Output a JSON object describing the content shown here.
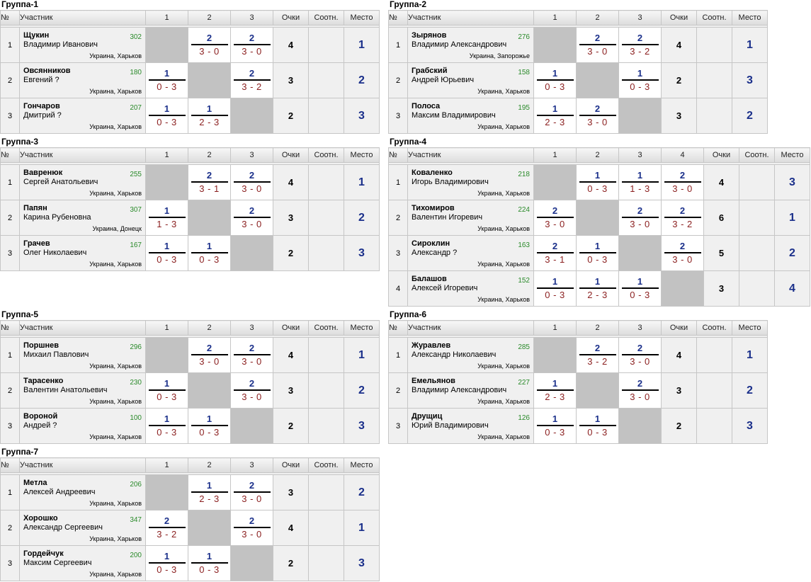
{
  "headers": {
    "num": "№",
    "participant": "Участник",
    "points": "Очки",
    "ratio": "Соотн.",
    "place": "Место"
  },
  "groups": [
    {
      "title": "Группа-1",
      "cols": [
        "1",
        "2",
        "3"
      ],
      "players": [
        {
          "n": "1",
          "last": "Щукин",
          "first": "Владимир Иванович",
          "rating": "302",
          "city": "Украина, Харьков",
          "res": [
            null,
            {
              "p": "2",
              "s": "3 - 0"
            },
            {
              "p": "2",
              "s": "3 - 0"
            }
          ],
          "points": "4",
          "place": "1"
        },
        {
          "n": "2",
          "last": "Овсянников",
          "first": "Евгений ?",
          "rating": "180",
          "city": "Украина, Харьков",
          "res": [
            {
              "p": "1",
              "s": "0 - 3"
            },
            null,
            {
              "p": "2",
              "s": "3 - 2"
            }
          ],
          "points": "3",
          "place": "2"
        },
        {
          "n": "3",
          "last": "Гончаров",
          "first": "Дмитрий ?",
          "rating": "207",
          "city": "Украина, Харьков",
          "res": [
            {
              "p": "1",
              "s": "0 - 3"
            },
            {
              "p": "1",
              "s": "2 - 3"
            },
            null
          ],
          "points": "2",
          "place": "3"
        }
      ]
    },
    {
      "title": "Группа-2",
      "cols": [
        "1",
        "2",
        "3"
      ],
      "players": [
        {
          "n": "1",
          "last": "Зырянов",
          "first": "Владимир Александрович",
          "rating": "276",
          "city": "Украина, Запорожье",
          "res": [
            null,
            {
              "p": "2",
              "s": "3 - 0"
            },
            {
              "p": "2",
              "s": "3 - 2"
            }
          ],
          "points": "4",
          "place": "1"
        },
        {
          "n": "2",
          "last": "Грабский",
          "first": "Андрей Юрьевич",
          "rating": "158",
          "city": "Украина, Харьков",
          "res": [
            {
              "p": "1",
              "s": "0 - 3"
            },
            null,
            {
              "p": "1",
              "s": "0 - 3"
            }
          ],
          "points": "2",
          "place": "3"
        },
        {
          "n": "3",
          "last": "Полоса",
          "first": "Максим Владимирович",
          "rating": "195",
          "city": "Украина, Харьков",
          "res": [
            {
              "p": "1",
              "s": "2 - 3"
            },
            {
              "p": "2",
              "s": "3 - 0"
            },
            null
          ],
          "points": "3",
          "place": "2"
        }
      ]
    },
    {
      "title": "Группа-3",
      "cols": [
        "1",
        "2",
        "3"
      ],
      "players": [
        {
          "n": "1",
          "last": "Вавренюк",
          "first": "Сергей Анатольевич",
          "rating": "255",
          "city": "Украина, Харьков",
          "res": [
            null,
            {
              "p": "2",
              "s": "3 - 1"
            },
            {
              "p": "2",
              "s": "3 - 0"
            }
          ],
          "points": "4",
          "place": "1"
        },
        {
          "n": "2",
          "last": "Папян",
          "first": "Карина Рубеновна",
          "rating": "307",
          "city": "Украина, Донецк",
          "res": [
            {
              "p": "1",
              "s": "1 - 3"
            },
            null,
            {
              "p": "2",
              "s": "3 - 0"
            }
          ],
          "points": "3",
          "place": "2"
        },
        {
          "n": "3",
          "last": "Грачев",
          "first": "Олег Николаевич",
          "rating": "167",
          "city": "Украина, Харьков",
          "res": [
            {
              "p": "1",
              "s": "0 - 3"
            },
            {
              "p": "1",
              "s": "0 - 3"
            },
            null
          ],
          "points": "2",
          "place": "3"
        }
      ]
    },
    {
      "title": "Группа-4",
      "cols": [
        "1",
        "2",
        "3",
        "4"
      ],
      "players": [
        {
          "n": "1",
          "last": "Коваленко",
          "first": "Игорь Владимирович",
          "rating": "218",
          "city": "Украина, Харьков",
          "res": [
            null,
            {
              "p": "1",
              "s": "0 - 3"
            },
            {
              "p": "1",
              "s": "1 - 3"
            },
            {
              "p": "2",
              "s": "3 - 0"
            }
          ],
          "points": "4",
          "place": "3"
        },
        {
          "n": "2",
          "last": "Тихомиров",
          "first": "Валентин Игоревич",
          "rating": "224",
          "city": "Украина, Харьков",
          "res": [
            {
              "p": "2",
              "s": "3 - 0"
            },
            null,
            {
              "p": "2",
              "s": "3 - 0"
            },
            {
              "p": "2",
              "s": "3 - 2"
            }
          ],
          "points": "6",
          "place": "1"
        },
        {
          "n": "3",
          "last": "Сироклин",
          "first": "Александр ?",
          "rating": "163",
          "city": "Украина, Харьков",
          "res": [
            {
              "p": "2",
              "s": "3 - 1"
            },
            {
              "p": "1",
              "s": "0 - 3"
            },
            null,
            {
              "p": "2",
              "s": "3 - 0"
            }
          ],
          "points": "5",
          "place": "2"
        },
        {
          "n": "4",
          "last": "Балашов",
          "first": "Алексей Игоревич",
          "rating": "152",
          "city": "Украина, Харьков",
          "res": [
            {
              "p": "1",
              "s": "0 - 3"
            },
            {
              "p": "1",
              "s": "2 - 3"
            },
            {
              "p": "1",
              "s": "0 - 3"
            },
            null
          ],
          "points": "3",
          "place": "4"
        }
      ]
    },
    {
      "title": "Группа-5",
      "cols": [
        "1",
        "2",
        "3"
      ],
      "players": [
        {
          "n": "1",
          "last": "Поршнев",
          "first": "Михаил Павлович",
          "rating": "296",
          "city": "Украина, Харьков",
          "res": [
            null,
            {
              "p": "2",
              "s": "3 - 0"
            },
            {
              "p": "2",
              "s": "3 - 0"
            }
          ],
          "points": "4",
          "place": "1"
        },
        {
          "n": "2",
          "last": "Тарасенко",
          "first": "Валентин Анатольевич",
          "rating": "230",
          "city": "Украина, Харьков",
          "res": [
            {
              "p": "1",
              "s": "0 - 3"
            },
            null,
            {
              "p": "2",
              "s": "3 - 0"
            }
          ],
          "points": "3",
          "place": "2"
        },
        {
          "n": "3",
          "last": "Вороной",
          "first": "Андрей ?",
          "rating": "100",
          "city": "Украина, Харьков",
          "res": [
            {
              "p": "1",
              "s": "0 - 3"
            },
            {
              "p": "1",
              "s": "0 - 3"
            },
            null
          ],
          "points": "2",
          "place": "3"
        }
      ]
    },
    {
      "title": "Группа-6",
      "cols": [
        "1",
        "2",
        "3"
      ],
      "players": [
        {
          "n": "1",
          "last": "Журавлев",
          "first": "Александр Николаевич",
          "rating": "285",
          "city": "Украина, Харьков",
          "res": [
            null,
            {
              "p": "2",
              "s": "3 - 2"
            },
            {
              "p": "2",
              "s": "3 - 0"
            }
          ],
          "points": "4",
          "place": "1"
        },
        {
          "n": "2",
          "last": "Емельянов",
          "first": "Владимир Александрович",
          "rating": "227",
          "city": "Украина, Харьков",
          "res": [
            {
              "p": "1",
              "s": "2 - 3"
            },
            null,
            {
              "p": "2",
              "s": "3 - 0"
            }
          ],
          "points": "3",
          "place": "2"
        },
        {
          "n": "3",
          "last": "Друщиц",
          "first": "Юрий Владимирович",
          "rating": "126",
          "city": "Украина, Харьков",
          "res": [
            {
              "p": "1",
              "s": "0 - 3"
            },
            {
              "p": "1",
              "s": "0 - 3"
            },
            null
          ],
          "points": "2",
          "place": "3"
        }
      ]
    },
    {
      "title": "Группа-7",
      "cols": [
        "1",
        "2",
        "3"
      ],
      "players": [
        {
          "n": "1",
          "last": "Метла",
          "first": "Алексей Андреевич",
          "rating": "206",
          "city": "Украина, Харьков",
          "res": [
            null,
            {
              "p": "1",
              "s": "2 - 3"
            },
            {
              "p": "2",
              "s": "3 - 0"
            }
          ],
          "points": "3",
          "place": "2"
        },
        {
          "n": "2",
          "last": "Хорошко",
          "first": "Александр Сергеевич",
          "rating": "347",
          "city": "Украина, Харьков",
          "res": [
            {
              "p": "2",
              "s": "3 - 2"
            },
            null,
            {
              "p": "2",
              "s": "3 - 0"
            }
          ],
          "points": "4",
          "place": "1"
        },
        {
          "n": "3",
          "last": "Гордейчук",
          "first": "Максим Сергеевич",
          "rating": "200",
          "city": "Украина, Харьков",
          "res": [
            {
              "p": "1",
              "s": "0 - 3"
            },
            {
              "p": "1",
              "s": "0 - 3"
            },
            null
          ],
          "points": "2",
          "place": "3"
        }
      ]
    }
  ]
}
